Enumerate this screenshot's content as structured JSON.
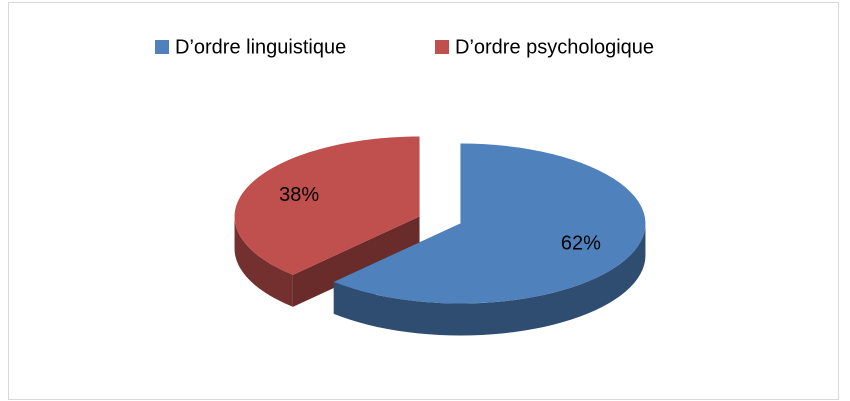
{
  "chart_data": {
    "type": "pie",
    "legend": "top",
    "categories": [
      "D’ordre linguistique",
      "D’ordre psychologique"
    ],
    "values": [
      62,
      38
    ],
    "value_labels": [
      "62%",
      "38%"
    ],
    "colors": [
      "#4f81bd",
      "#c0504d"
    ]
  }
}
